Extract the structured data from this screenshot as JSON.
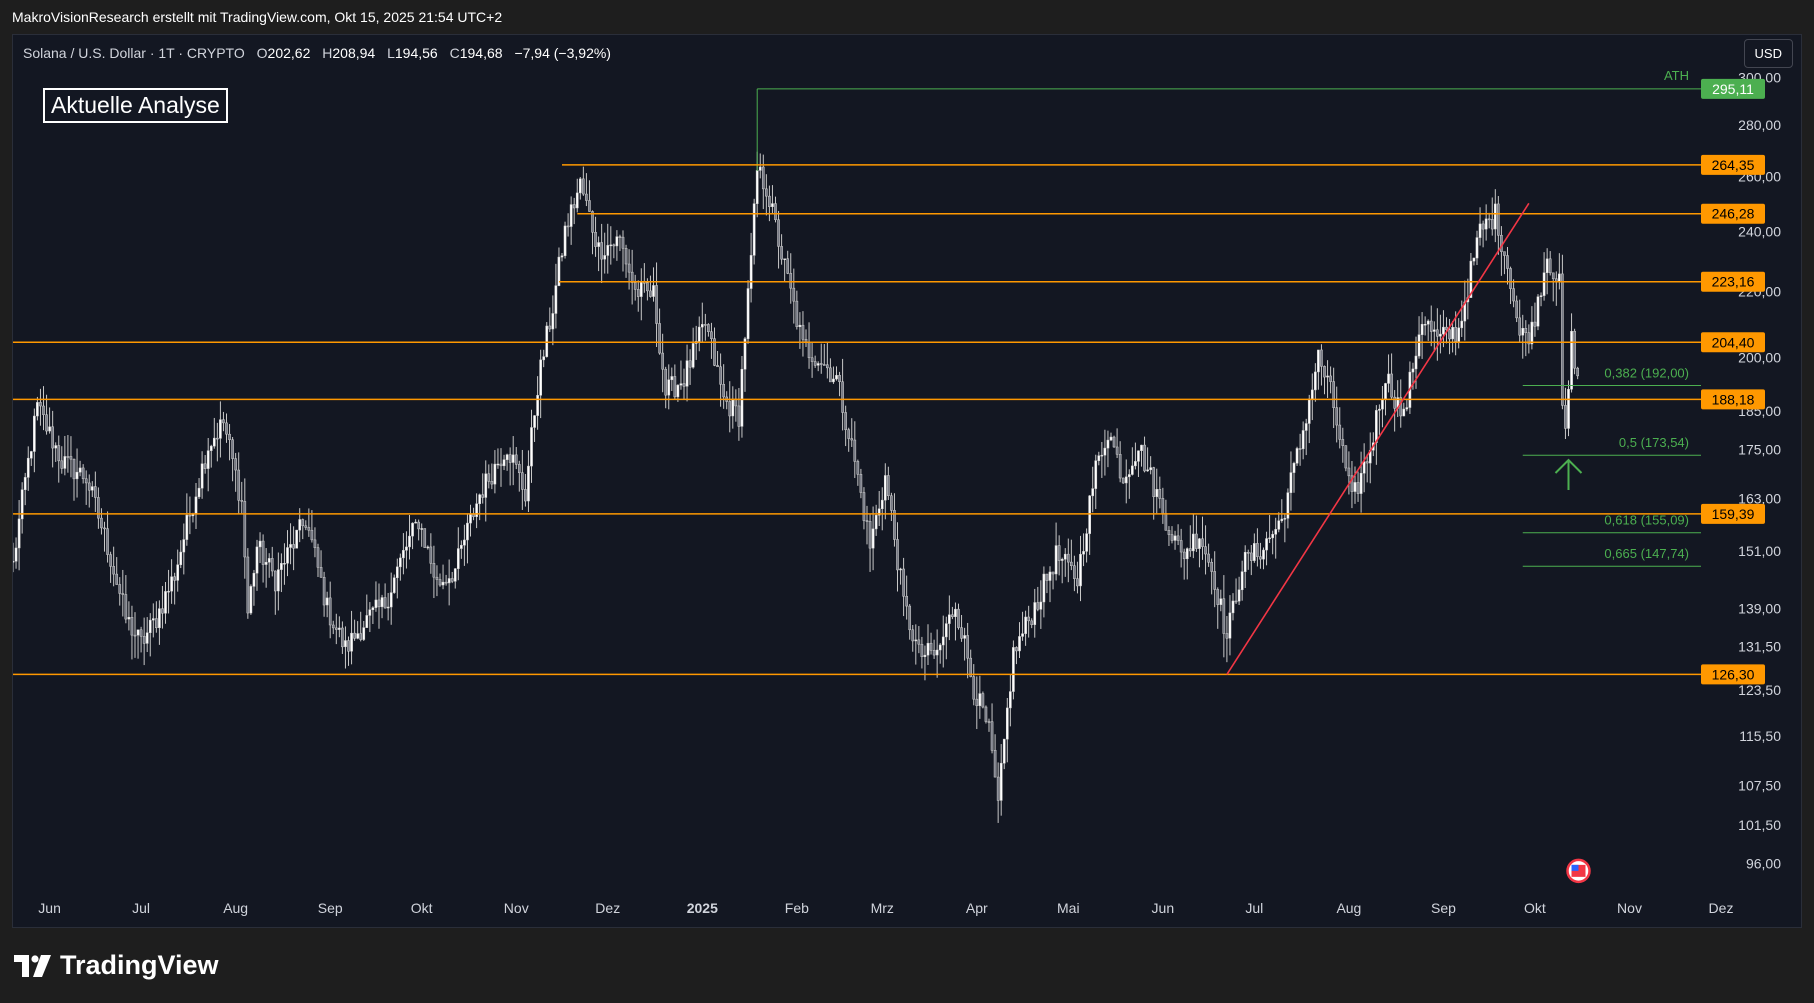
{
  "caption": "MakroVisionResearch erstellt mit TradingView.com, Okt 15, 2025 21:54 UTC+2",
  "header": {
    "symbol": "Solana / U.S. Dollar · 1T · CRYPTO",
    "open_label": "O",
    "open": "202,62",
    "high_label": "H",
    "high": "208,94",
    "low_label": "L",
    "low": "194,56",
    "close_label": "C",
    "close": "194,68",
    "change": "−7,94 (−3,92%)"
  },
  "currency": "USD",
  "annotation_box": "Aktuelle Analyse",
  "brand": "TradingView",
  "colors": {
    "background": "#131722",
    "level_line": "#ff9800",
    "ath_line": "#4caf50",
    "fib_line": "#4caf50",
    "trendline": "#f23645",
    "candle": "#ffffff"
  },
  "chart_data": {
    "type": "candlestick",
    "title": "Solana / U.S. Dollar · 1T · CRYPTO",
    "ylim": [
      92,
      302
    ],
    "y_ticks": [
      {
        "value": 300,
        "label": "300,00"
      },
      {
        "value": 280,
        "label": "280,00"
      },
      {
        "value": 260,
        "label": "260,00"
      },
      {
        "value": 240,
        "label": "240,00"
      },
      {
        "value": 220,
        "label": "220,00"
      },
      {
        "value": 200,
        "label": "200,00"
      },
      {
        "value": 185,
        "label": "185,00"
      },
      {
        "value": 175,
        "label": "175,00"
      },
      {
        "value": 163,
        "label": "163,00"
      },
      {
        "value": 151,
        "label": "151,00"
      },
      {
        "value": 139,
        "label": "139,00"
      },
      {
        "value": 131.5,
        "label": "131,50"
      },
      {
        "value": 123.5,
        "label": "123,50"
      },
      {
        "value": 115.5,
        "label": "115,50"
      },
      {
        "value": 107.5,
        "label": "107,50"
      },
      {
        "value": 101.5,
        "label": "101,50"
      },
      {
        "value": 96,
        "label": "96,00"
      }
    ],
    "x_ticks": [
      "Jun",
      "Jul",
      "Aug",
      "Sep",
      "Okt",
      "Nov",
      "Dez",
      "2025",
      "Feb",
      "Mrz",
      "Apr",
      "Mai",
      "Jun",
      "Jul",
      "Aug",
      "Sep",
      "Okt",
      "Nov",
      "Dez"
    ],
    "x_range": [
      "2024-05-20",
      "2025-12-01"
    ],
    "price_levels": [
      {
        "value": 295.11,
        "label": "295,11",
        "kind": "ath",
        "from_date": "2025-01-19",
        "text": "ATH"
      },
      {
        "value": 264.35,
        "label": "264,35",
        "kind": "level",
        "from_date": "2024-11-16"
      },
      {
        "value": 246.28,
        "label": "246,28",
        "kind": "level",
        "from_date": "2024-11-21"
      },
      {
        "value": 223.16,
        "label": "223,16",
        "kind": "level",
        "from_date": "2024-11-15"
      },
      {
        "value": 204.4,
        "label": "204,40",
        "kind": "level",
        "from_date": "2024-05-20"
      },
      {
        "value": 188.18,
        "label": "188,18",
        "kind": "level",
        "from_date": "2024-05-20"
      },
      {
        "value": 159.39,
        "label": "159,39",
        "kind": "level",
        "from_date": "2024-05-20"
      },
      {
        "value": 126.3,
        "label": "126,30",
        "kind": "level",
        "from_date": "2024-05-20"
      }
    ],
    "fib_levels": [
      {
        "value": 192.0,
        "label": "0,382 (192,00)"
      },
      {
        "value": 173.54,
        "label": "0,5 (173,54)"
      },
      {
        "value": 155.09,
        "label": "0,618 (155,09)"
      },
      {
        "value": 147.74,
        "label": "0,665 (147,74)"
      }
    ],
    "trendline": {
      "from": [
        "2025-06-22",
        126.3
      ],
      "to": [
        "2025-09-29",
        250
      ]
    },
    "anchors": [
      [
        "2024-05-20",
        148
      ],
      [
        "2024-05-28",
        186
      ],
      [
        "2024-06-05",
        172
      ],
      [
        "2024-06-13",
        168
      ],
      [
        "2024-06-20",
        152
      ],
      [
        "2024-06-26",
        137
      ],
      [
        "2024-07-01",
        132
      ],
      [
        "2024-07-06",
        137
      ],
      [
        "2024-07-12",
        146
      ],
      [
        "2024-07-18",
        162
      ],
      [
        "2024-07-23",
        176
      ],
      [
        "2024-07-28",
        182
      ],
      [
        "2024-08-03",
        162
      ],
      [
        "2024-08-05",
        138
      ],
      [
        "2024-08-08",
        152
      ],
      [
        "2024-08-14",
        145
      ],
      [
        "2024-08-24",
        158
      ],
      [
        "2024-08-31",
        139
      ],
      [
        "2024-09-06",
        131
      ],
      [
        "2024-09-12",
        136
      ],
      [
        "2024-09-19",
        140
      ],
      [
        "2024-09-26",
        152
      ],
      [
        "2024-09-30",
        158
      ],
      [
        "2024-10-06",
        144
      ],
      [
        "2024-10-12",
        147
      ],
      [
        "2024-10-20",
        164
      ],
      [
        "2024-10-29",
        176
      ],
      [
        "2024-11-04",
        164
      ],
      [
        "2024-11-08",
        192
      ],
      [
        "2024-11-13",
        215
      ],
      [
        "2024-11-17",
        240
      ],
      [
        "2024-11-22",
        257
      ],
      [
        "2024-11-28",
        234
      ],
      [
        "2024-12-05",
        237
      ],
      [
        "2024-12-10",
        220
      ],
      [
        "2024-12-16",
        219
      ],
      [
        "2024-12-20",
        190
      ],
      [
        "2024-12-26",
        194
      ],
      [
        "2025-01-02",
        210
      ],
      [
        "2025-01-08",
        188
      ],
      [
        "2025-01-13",
        184
      ],
      [
        "2025-01-17",
        230
      ],
      [
        "2025-01-19",
        262
      ],
      [
        "2025-01-22",
        256
      ],
      [
        "2025-01-27",
        232
      ],
      [
        "2025-02-03",
        203
      ],
      [
        "2025-02-08",
        200
      ],
      [
        "2025-02-14",
        194
      ],
      [
        "2025-02-20",
        172
      ],
      [
        "2025-02-25",
        152
      ],
      [
        "2025-03-02",
        168
      ],
      [
        "2025-03-08",
        140
      ],
      [
        "2025-03-13",
        130
      ],
      [
        "2025-03-19",
        130
      ],
      [
        "2025-03-25",
        140
      ],
      [
        "2025-03-31",
        124
      ],
      [
        "2025-04-05",
        116
      ],
      [
        "2025-04-08",
        104
      ],
      [
        "2025-04-13",
        130
      ],
      [
        "2025-04-22",
        142
      ],
      [
        "2025-04-27",
        150
      ],
      [
        "2025-05-04",
        145
      ],
      [
        "2025-05-10",
        170
      ],
      [
        "2025-05-14",
        180
      ],
      [
        "2025-05-19",
        168
      ],
      [
        "2025-05-24",
        176
      ],
      [
        "2025-06-01",
        160
      ],
      [
        "2025-06-07",
        150
      ],
      [
        "2025-06-13",
        155
      ],
      [
        "2025-06-18",
        145
      ],
      [
        "2025-06-22",
        133
      ],
      [
        "2025-06-27",
        148
      ],
      [
        "2025-07-04",
        152
      ],
      [
        "2025-07-10",
        158
      ],
      [
        "2025-07-16",
        176
      ],
      [
        "2025-07-22",
        200
      ],
      [
        "2025-07-26",
        190
      ],
      [
        "2025-08-02",
        162
      ],
      [
        "2025-08-08",
        175
      ],
      [
        "2025-08-13",
        195
      ],
      [
        "2025-08-19",
        183
      ],
      [
        "2025-08-25",
        212
      ],
      [
        "2025-08-30",
        205
      ],
      [
        "2025-09-06",
        208
      ],
      [
        "2025-09-13",
        240
      ],
      [
        "2025-09-18",
        246
      ],
      [
        "2025-09-23",
        224
      ],
      [
        "2025-09-26",
        206
      ],
      [
        "2025-09-30",
        208
      ],
      [
        "2025-10-05",
        232
      ],
      [
        "2025-10-09",
        222
      ],
      [
        "2025-10-10",
        186
      ],
      [
        "2025-10-11",
        178
      ],
      [
        "2025-10-13",
        205
      ],
      [
        "2025-10-15",
        194.7
      ]
    ]
  }
}
